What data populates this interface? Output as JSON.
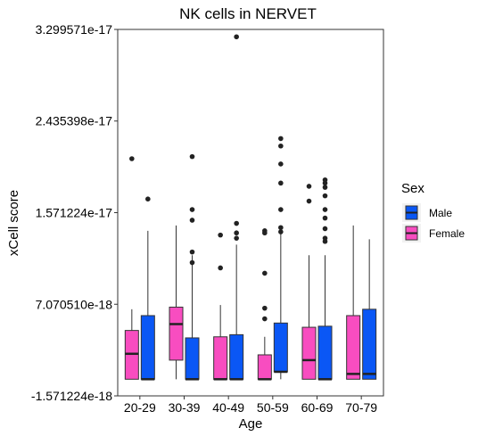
{
  "chart_data": {
    "type": "boxplot",
    "title": "NK cells in NERVET",
    "xlabel": "Age",
    "ylabel": "xCell score",
    "categories": [
      "20-29",
      "30-39",
      "40-49",
      "50-59",
      "60-69",
      "70-79"
    ],
    "y_ticks": [
      -1.571224e-18,
      7.07051e-18,
      1.571224e-17,
      2.435398e-17,
      3.299571e-17
    ],
    "y_tick_labels": [
      "-1.571224e-18",
      "7.070510e-18",
      "1.571224e-17",
      "2.435398e-17",
      "3.299571e-17"
    ],
    "ylim": [
      -1.571224e-18,
      3.299571e-17
    ],
    "grid": false,
    "legend": {
      "title": "Sex",
      "placement": "right",
      "entries": [
        {
          "label": "Male",
          "color": "#0a57f5"
        },
        {
          "label": "Female",
          "color": "#f84dc0"
        }
      ]
    },
    "series": [
      {
        "name": "Female",
        "color": "#f84dc0",
        "boxes": [
          {
            "min": 0,
            "q1": 0,
            "median": 2.4e-18,
            "q3": 4.6e-18,
            "max": 6.6e-18,
            "outliers": [
              2.08e-17
            ]
          },
          {
            "min": 0,
            "q1": 1.8e-18,
            "median": 5.2e-18,
            "q3": 6.8e-18,
            "max": 1.45e-17,
            "outliers": []
          },
          {
            "min": 0,
            "q1": 0,
            "median": 0,
            "q3": 4e-18,
            "max": 7e-18,
            "outliers": [
              1.36e-17,
              1.05e-17
            ]
          },
          {
            "min": 0,
            "q1": 0,
            "median": 0,
            "q3": 2.3e-18,
            "max": 4e-18,
            "outliers": [
              1.4e-17,
              1.38e-17,
              1e-17,
              6.7e-18,
              5.7e-18
            ]
          },
          {
            "min": 0,
            "q1": 0,
            "median": 1.8e-18,
            "q3": 4.9e-18,
            "max": 1.17e-17,
            "outliers": [
              1.82e-17,
              1.68e-17
            ]
          },
          {
            "min": 0,
            "q1": 0,
            "median": 5e-19,
            "q3": 6e-18,
            "max": 1.45e-17,
            "outliers": []
          }
        ]
      },
      {
        "name": "Male",
        "color": "#0a57f5",
        "boxes": [
          {
            "min": 0,
            "q1": 0,
            "median": 0,
            "q3": 6e-18,
            "max": 1.4e-17,
            "outliers": [
              1.7e-17
            ]
          },
          {
            "min": 0,
            "q1": 0,
            "median": 0,
            "q3": 3.9e-18,
            "max": 1.17e-17,
            "outliers": [
              2.1e-17,
              1.6e-17,
              1.5e-17,
              1.2e-17,
              1.1e-17
            ]
          },
          {
            "min": 0,
            "q1": 0,
            "median": 0,
            "q3": 4.2e-18,
            "max": 1.27e-17,
            "outliers": [
              3.23e-17,
              1.47e-17,
              1.38e-17,
              1.33e-17
            ]
          },
          {
            "min": 0,
            "q1": 7e-19,
            "median": 7e-19,
            "q3": 5.3e-18,
            "max": 1.4e-17,
            "outliers": [
              2.27e-17,
              2.2e-17,
              2.03e-17,
              1.85e-17,
              1.6e-17,
              1.43e-17,
              1.39e-17
            ]
          },
          {
            "min": 0,
            "q1": 0,
            "median": 0,
            "q3": 5e-18,
            "max": 1.17e-17,
            "outliers": [
              1.88e-17,
              1.85e-17,
              1.81e-17,
              1.73e-17,
              1.6e-17,
              1.52e-17,
              1.42e-17,
              1.33e-17,
              1.3e-17
            ]
          },
          {
            "min": 0,
            "q1": 0,
            "median": 5e-19,
            "q3": 6.6e-18,
            "max": 1.32e-17,
            "outliers": []
          }
        ]
      }
    ]
  }
}
